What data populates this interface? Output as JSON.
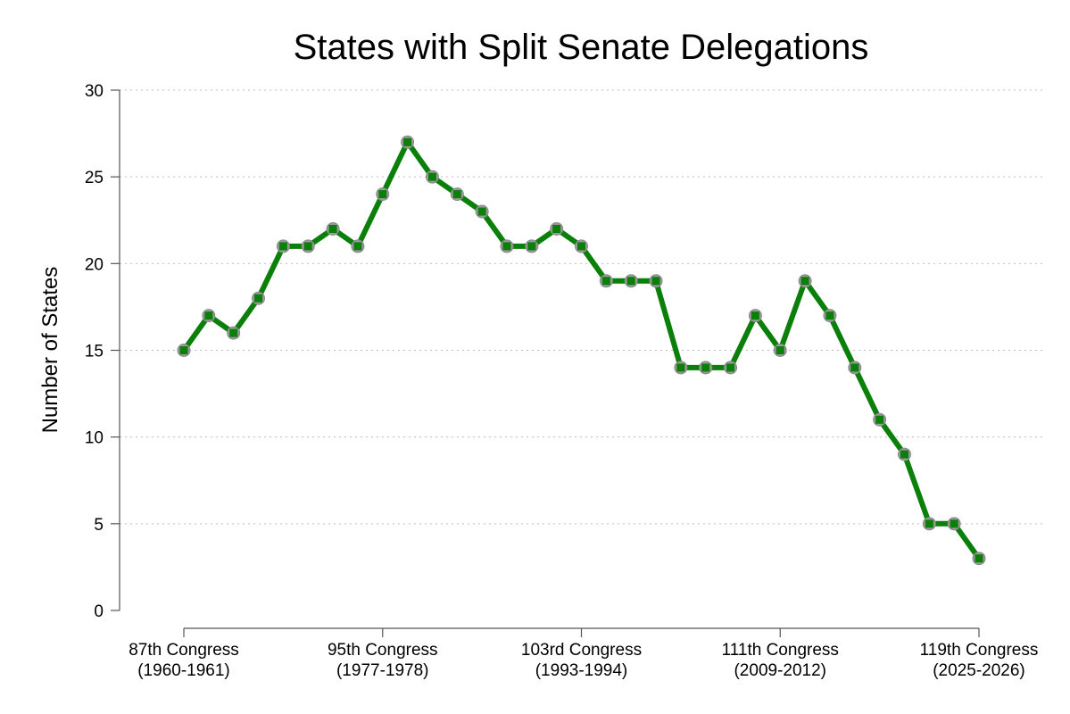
{
  "chart_data": {
    "type": "line",
    "title": "States with Split Senate Delegations",
    "xlabel": "",
    "ylabel": "Number of States",
    "ylim": [
      0,
      30
    ],
    "yticks": [
      0,
      5,
      10,
      15,
      20,
      25,
      30
    ],
    "grid": "horizontal dotted",
    "line_color": "#0a7f0a",
    "marker_color": "#0a7f0a",
    "marker_edge_color": "#8a8a8a",
    "x": [
      87,
      88,
      89,
      90,
      91,
      92,
      93,
      94,
      95,
      96,
      97,
      98,
      99,
      100,
      101,
      102,
      103,
      104,
      105,
      106,
      107,
      108,
      109,
      110,
      111,
      112,
      113,
      114,
      115,
      116,
      117,
      118,
      119
    ],
    "values": [
      15,
      17,
      16,
      18,
      21,
      21,
      22,
      21,
      24,
      27,
      25,
      24,
      23,
      21,
      21,
      22,
      21,
      19,
      19,
      19,
      14,
      14,
      14,
      17,
      15,
      19,
      17,
      14,
      11,
      9,
      5,
      5,
      3
    ],
    "xlim": [
      87,
      119
    ],
    "xticks": [
      {
        "x": 87,
        "line1": "87th Congress",
        "line2": "(1960-1961)"
      },
      {
        "x": 95,
        "line1": "95th Congress",
        "line2": "(1977-1978)"
      },
      {
        "x": 103,
        "line1": "103rd Congress",
        "line2": "(1993-1994)"
      },
      {
        "x": 111,
        "line1": "111th Congress",
        "line2": "(2009-2012)"
      },
      {
        "x": 119,
        "line1": "119th Congress",
        "line2": "(2025-2026)"
      }
    ]
  }
}
